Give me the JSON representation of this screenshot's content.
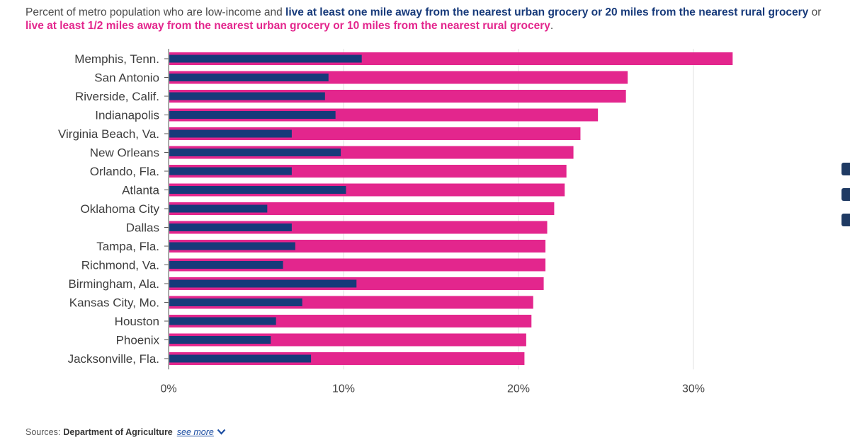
{
  "subtitle": {
    "prefix": "Percent of metro population who are low-income and ",
    "series1_text": "live at least one mile away from the nearest urban grocery or 20 miles from the nearest rural grocery",
    "joiner": " or ",
    "series2_text": "live at least 1/2 miles away from the nearest urban grocery or 10 miles from the nearest rural grocery",
    "suffix": "."
  },
  "colors": {
    "series1": "#173a7a",
    "series2": "#e3268d",
    "grid": "#e2e2e2",
    "axis": "#555555"
  },
  "chart_data": {
    "type": "bar",
    "orientation": "horizontal",
    "categories": [
      "Memphis, Tenn.",
      "San Antonio",
      "Riverside, Calif.",
      "Indianapolis",
      "Virginia Beach, Va.",
      "New Orleans",
      "Orlando, Fla.",
      "Atlanta",
      "Oklahoma City",
      "Dallas",
      "Tampa, Fla.",
      "Richmond, Va.",
      "Birmingham, Ala.",
      "Kansas City, Mo.",
      "Houston",
      "Phoenix",
      "Jacksonville, Fla."
    ],
    "series": [
      {
        "values": [
          11.0,
          9.1,
          8.9,
          9.5,
          7.0,
          9.8,
          7.0,
          10.1,
          5.6,
          7.0,
          7.2,
          6.5,
          10.7,
          7.6,
          6.1,
          5.8,
          8.1
        ]
      },
      {
        "values": [
          32.2,
          26.2,
          26.1,
          24.5,
          23.5,
          23.1,
          22.7,
          22.6,
          22.0,
          21.6,
          21.5,
          21.5,
          21.4,
          20.8,
          20.7,
          20.4,
          20.3
        ]
      }
    ],
    "xlim": [
      0,
      32.5
    ],
    "xticks": [
      0,
      10,
      20,
      30
    ],
    "xtick_labels": [
      "0%",
      "10%",
      "20%",
      "30%"
    ],
    "grid": true,
    "legend": "none"
  },
  "source": {
    "label": "Sources:",
    "org": "Department of Agriculture",
    "more": "see more"
  }
}
